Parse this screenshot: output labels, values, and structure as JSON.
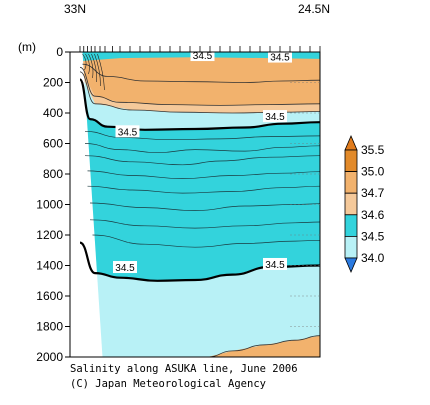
{
  "chart_data": {
    "type": "contour",
    "title": "Salinity along ASUKA line, June 2006",
    "credit": "(C) Japan Meteorological Agency",
    "x_axis": {
      "left_label": "33N",
      "right_label": "24.5N"
    },
    "y_axis": {
      "unit_label": "(m)",
      "range": [
        0,
        2000
      ],
      "ticks": [
        "0",
        "200",
        "400",
        "600",
        "800",
        "1000",
        "1200",
        "1400",
        "1600",
        "1800",
        "2000"
      ],
      "tick_values": [
        0,
        200,
        400,
        600,
        800,
        1000,
        1200,
        1400,
        1600,
        1800,
        2000
      ]
    },
    "colorbar": {
      "levels": [
        "35.5",
        "35.0",
        "34.7",
        "34.6",
        "34.5",
        "34.0"
      ],
      "level_values": [
        35.5,
        35.0,
        34.7,
        34.6,
        34.5,
        34.0
      ],
      "band_colors": [
        "#e28a2a",
        "#f2b26d",
        "#f5c99a",
        "#33d3dc",
        "#b8f1f6"
      ],
      "tip_colors": {
        "top": "#e07b1c",
        "bottom": "#2a7ae0"
      }
    },
    "contour_labels": [
      {
        "text": "34.5",
        "x_frac": 0.53,
        "depth": 20
      },
      {
        "text": "34.5",
        "x_frac": 0.84,
        "depth": 30
      },
      {
        "text": "34.5",
        "x_frac": 0.82,
        "depth": 420
      },
      {
        "text": "34.5",
        "x_frac": 0.23,
        "depth": 520
      },
      {
        "text": "34.5",
        "x_frac": 0.22,
        "depth": 1410
      },
      {
        "text": "34.5",
        "x_frac": 0.82,
        "depth": 1390
      }
    ],
    "isolines": {
      "surface_fresh_34_6": [
        [
          0.05,
          80
        ],
        [
          0.15,
          160
        ],
        [
          0.3,
          190
        ],
        [
          0.5,
          195
        ],
        [
          0.7,
          200
        ],
        [
          0.85,
          190
        ],
        [
          1.0,
          185
        ]
      ],
      "halocline_34_7": [
        [
          0.04,
          100
        ],
        [
          0.1,
          290
        ],
        [
          0.2,
          330
        ],
        [
          0.4,
          345
        ],
        [
          0.6,
          350
        ],
        [
          0.8,
          345
        ],
        [
          1.0,
          340
        ]
      ],
      "halocline_34_6": [
        [
          0.04,
          130
        ],
        [
          0.1,
          340
        ],
        [
          0.25,
          380
        ],
        [
          0.45,
          395
        ],
        [
          0.65,
          400
        ],
        [
          0.85,
          395
        ],
        [
          1.0,
          390
        ]
      ],
      "iso_34_5_upper": [
        [
          0.04,
          180
        ],
        [
          0.08,
          440
        ],
        [
          0.15,
          490
        ],
        [
          0.3,
          510
        ],
        [
          0.5,
          505
        ],
        [
          0.7,
          495
        ],
        [
          0.85,
          470
        ],
        [
          1.0,
          460
        ]
      ],
      "iso_34_5_lower": [
        [
          0.04,
          1250
        ],
        [
          0.1,
          1450
        ],
        [
          0.2,
          1480
        ],
        [
          0.35,
          1500
        ],
        [
          0.5,
          1495
        ],
        [
          0.65,
          1460
        ],
        [
          0.8,
          1410
        ],
        [
          1.0,
          1400
        ]
      ],
      "deep_rise": [
        [
          0.55,
          2000
        ],
        [
          0.65,
          1960
        ],
        [
          0.78,
          1920
        ],
        [
          0.9,
          1890
        ],
        [
          1.0,
          1860
        ]
      ]
    },
    "interior_contours": [
      [
        [
          0.06,
          520
        ],
        [
          0.2,
          560
        ],
        [
          0.4,
          575
        ],
        [
          0.6,
          570
        ],
        [
          0.8,
          555
        ],
        [
          1.0,
          550
        ]
      ],
      [
        [
          0.06,
          600
        ],
        [
          0.2,
          640
        ],
        [
          0.35,
          660
        ],
        [
          0.5,
          640
        ],
        [
          0.7,
          650
        ],
        [
          0.85,
          625
        ],
        [
          1.0,
          615
        ]
      ],
      [
        [
          0.06,
          680
        ],
        [
          0.25,
          720
        ],
        [
          0.45,
          740
        ],
        [
          0.6,
          715
        ],
        [
          0.8,
          690
        ],
        [
          1.0,
          680
        ]
      ],
      [
        [
          0.07,
          780
        ],
        [
          0.25,
          810
        ],
        [
          0.45,
          830
        ],
        [
          0.65,
          810
        ],
        [
          0.85,
          795
        ],
        [
          1.0,
          785
        ]
      ],
      [
        [
          0.07,
          880
        ],
        [
          0.25,
          905
        ],
        [
          0.45,
          925
        ],
        [
          0.65,
          915
        ],
        [
          0.85,
          890
        ],
        [
          1.0,
          880
        ]
      ],
      [
        [
          0.08,
          990
        ],
        [
          0.3,
          1020
        ],
        [
          0.5,
          1040
        ],
        [
          0.7,
          1010
        ],
        [
          0.9,
          1000
        ],
        [
          1.0,
          995
        ]
      ],
      [
        [
          0.08,
          1100
        ],
        [
          0.3,
          1140
        ],
        [
          0.5,
          1155
        ],
        [
          0.7,
          1140
        ],
        [
          0.9,
          1120
        ],
        [
          1.0,
          1115
        ]
      ],
      [
        [
          0.09,
          1200
        ],
        [
          0.3,
          1260
        ],
        [
          0.5,
          1280
        ],
        [
          0.7,
          1255
        ],
        [
          0.9,
          1240
        ],
        [
          1.0,
          1235
        ]
      ]
    ]
  }
}
